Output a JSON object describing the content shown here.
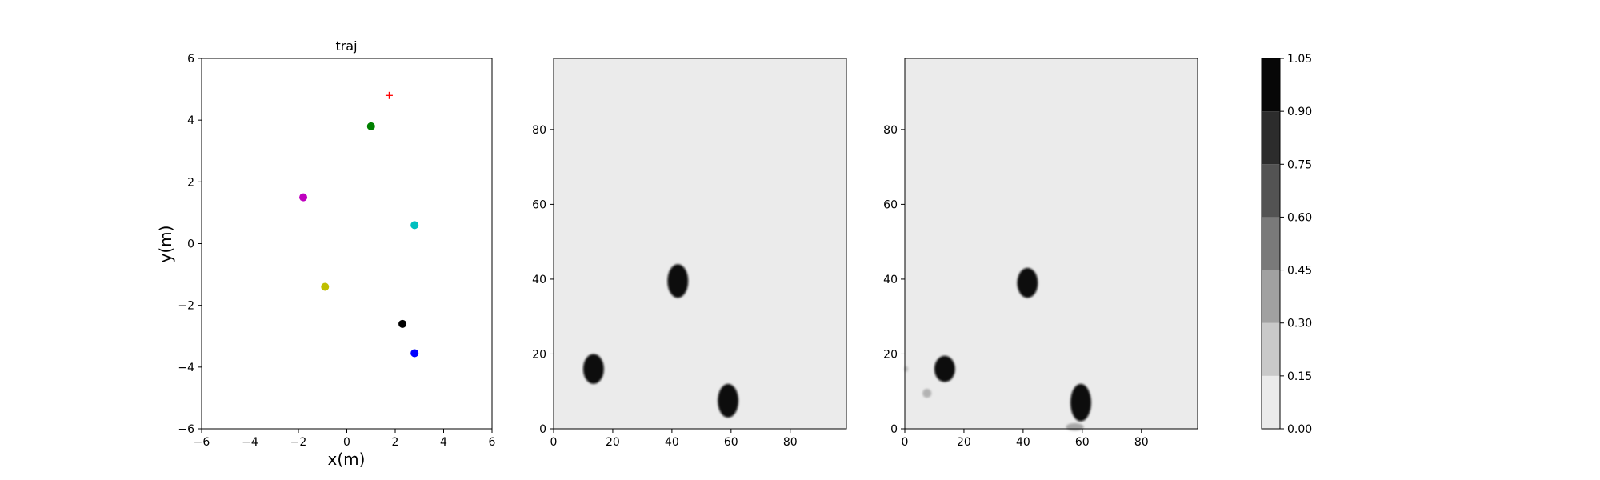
{
  "chart_data": [
    {
      "type": "scatter",
      "title": "traj",
      "xlabel": "x(m)",
      "ylabel": "y(m)",
      "xlim": [
        -6,
        6
      ],
      "ylim": [
        -6,
        6
      ],
      "xticks": [
        -6,
        -4,
        -2,
        0,
        2,
        4,
        6
      ],
      "yticks": [
        -6,
        -4,
        -2,
        0,
        2,
        4,
        6
      ],
      "grid": false,
      "points": [
        {
          "x": 1.0,
          "y": 3.8,
          "color": "#008000",
          "marker": "circle"
        },
        {
          "x": -1.8,
          "y": 1.5,
          "color": "#bf00bf",
          "marker": "circle"
        },
        {
          "x": 2.8,
          "y": 0.6,
          "color": "#00bfbf",
          "marker": "circle"
        },
        {
          "x": -0.9,
          "y": -1.4,
          "color": "#bfbf00",
          "marker": "circle"
        },
        {
          "x": 2.3,
          "y": -2.6,
          "color": "#000000",
          "marker": "circle"
        },
        {
          "x": 2.8,
          "y": -3.55,
          "color": "#0000ff",
          "marker": "circle"
        },
        {
          "x": 1.75,
          "y": 4.8,
          "color": "#ff0000",
          "marker": "plus"
        }
      ]
    },
    {
      "type": "heatmap",
      "title": "",
      "xlim": [
        0,
        99
      ],
      "ylim": [
        0,
        99
      ],
      "xticks": [
        0,
        20,
        40,
        60,
        80
      ],
      "yticks": [
        0,
        20,
        40,
        60,
        80
      ],
      "background_value": 0.05,
      "blobs": [
        {
          "x": 13.5,
          "y": 16,
          "rx": 3.5,
          "ry": 4,
          "value": 1.0
        },
        {
          "x": 42,
          "y": 39.5,
          "rx": 3.5,
          "ry": 4.5,
          "value": 1.0
        },
        {
          "x": 59,
          "y": 7.5,
          "rx": 3.5,
          "ry": 4.5,
          "value": 1.0
        }
      ]
    },
    {
      "type": "heatmap",
      "title": "",
      "xlim": [
        0,
        99
      ],
      "ylim": [
        0,
        99
      ],
      "xticks": [
        0,
        20,
        40,
        60,
        80
      ],
      "yticks": [
        0,
        20,
        40,
        60,
        80
      ],
      "background_value": 0.05,
      "blobs": [
        {
          "x": 13.5,
          "y": 16,
          "rx": 3.5,
          "ry": 3.5,
          "value": 1.0
        },
        {
          "x": 41.5,
          "y": 39,
          "rx": 3.5,
          "ry": 4,
          "value": 1.0
        },
        {
          "x": 59.5,
          "y": 7,
          "rx": 3.5,
          "ry": 5,
          "value": 1.0
        },
        {
          "x": 57.5,
          "y": 0.5,
          "rx": 3,
          "ry": 1,
          "value": 0.3
        },
        {
          "x": 7.5,
          "y": 9.5,
          "rx": 1.5,
          "ry": 1.2,
          "value": 0.25
        },
        {
          "x": 0.5,
          "y": 16,
          "rx": 0.6,
          "ry": 0.8,
          "value": 0.2
        }
      ]
    },
    {
      "type": "colorbar",
      "levels": [
        0.0,
        0.15,
        0.3,
        0.45,
        0.6,
        0.75,
        0.9,
        1.05
      ],
      "tick_labels": [
        "0.00",
        "0.15",
        "0.30",
        "0.45",
        "0.60",
        "0.75",
        "0.90",
        "1.05"
      ],
      "colors": [
        "#ebebeb",
        "#c9c9c9",
        "#a1a1a1",
        "#7a7a7a",
        "#535353",
        "#2c2c2c",
        "#070707"
      ]
    }
  ]
}
